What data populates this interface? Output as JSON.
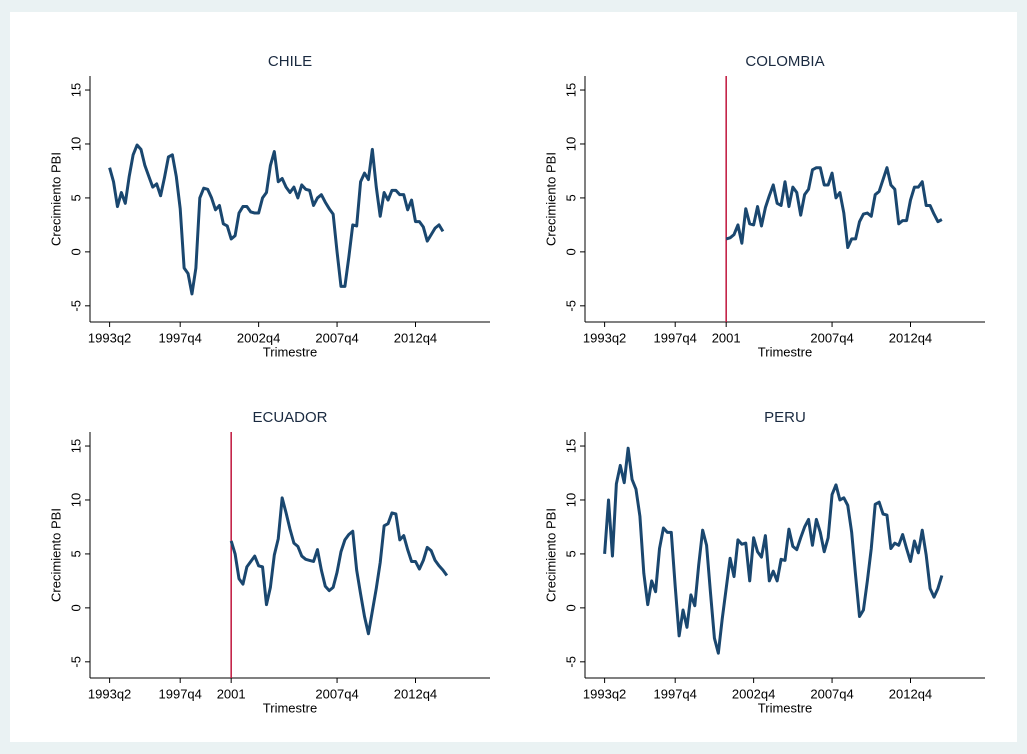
{
  "chart_data": [
    {
      "type": "line",
      "title": "CHILE",
      "x_label": "Trimestre",
      "y_label": "Crecimiento PBI",
      "color": "#1a476f",
      "xlim": [
        1992,
        2017.5
      ],
      "ylim": [
        -6.5,
        16.3
      ],
      "xticks": [
        {
          "value": 1993.25,
          "label": "1993q2"
        },
        {
          "value": 1997.75,
          "label": "1997q4"
        },
        {
          "value": 2002.75,
          "label": "2002q4"
        },
        {
          "value": 2007.75,
          "label": "2007q4"
        },
        {
          "value": 2012.75,
          "label": "2012q4"
        }
      ],
      "yticks": [
        -5,
        0,
        5,
        10,
        15
      ],
      "x": [
        1993.25,
        1993.5,
        1993.75,
        1994,
        1994.25,
        1994.5,
        1994.75,
        1995,
        1995.25,
        1995.5,
        1995.75,
        1996,
        1996.25,
        1996.5,
        1996.75,
        1997,
        1997.25,
        1997.5,
        1997.75,
        1998,
        1998.25,
        1998.5,
        1998.75,
        1999,
        1999.25,
        1999.5,
        1999.75,
        2000,
        2000.25,
        2000.5,
        2000.75,
        2001,
        2001.25,
        2001.5,
        2001.75,
        2002,
        2002.25,
        2002.5,
        2002.75,
        2003,
        2003.25,
        2003.5,
        2003.75,
        2004,
        2004.25,
        2004.5,
        2004.75,
        2005,
        2005.25,
        2005.5,
        2005.75,
        2006,
        2006.25,
        2006.5,
        2006.75,
        2007,
        2007.25,
        2007.5,
        2007.75,
        2008,
        2008.25,
        2008.5,
        2008.75,
        2009,
        2009.25,
        2009.5,
        2009.75,
        2010,
        2010.25,
        2010.5,
        2010.75,
        2011,
        2011.25,
        2011.5,
        2011.75,
        2012,
        2012.25,
        2012.5,
        2012.75,
        2013,
        2013.25,
        2013.5,
        2013.75,
        2014,
        2014.25,
        2014.5
      ],
      "values": [
        7.8,
        6.5,
        4.2,
        5.5,
        4.5,
        7.0,
        9.0,
        9.9,
        9.5,
        8.0,
        7.0,
        6.0,
        6.3,
        5.2,
        6.9,
        8.8,
        9.0,
        7.0,
        4.0,
        -1.5,
        -2.0,
        -3.9,
        -1.5,
        5.0,
        5.9,
        5.8,
        5.0,
        3.9,
        4.3,
        2.6,
        2.4,
        1.2,
        1.5,
        3.6,
        4.2,
        4.2,
        3.7,
        3.6,
        3.6,
        5.0,
        5.5,
        8.0,
        9.3,
        6.5,
        6.8,
        6.0,
        5.5,
        6.0,
        5.0,
        6.2,
        5.8,
        5.7,
        4.3,
        5.0,
        5.3,
        4.6,
        4.0,
        3.5,
        0,
        -3.2,
        -3.2,
        -0.5,
        2.5,
        2.4,
        6.5,
        7.3,
        6.7,
        9.5,
        6.0,
        3.3,
        5.5,
        4.8,
        5.7,
        5.7,
        5.3,
        5.3,
        3.9,
        4.8,
        2.8,
        2.8,
        2.3,
        1.0,
        1.6,
        2.2,
        2.5,
        1.9
      ]
    },
    {
      "type": "line",
      "title": "COLOMBIA",
      "x_label": "Trimestre",
      "y_label": "Crecimiento PBI",
      "color": "#1a476f",
      "xlim": [
        1992,
        2017.5
      ],
      "ylim": [
        -6.5,
        16.3
      ],
      "xticks": [
        {
          "value": 1993.25,
          "label": "1993q2"
        },
        {
          "value": 1997.75,
          "label": "1997q4"
        },
        2001,
        {
          "value": 2007.75,
          "label": "2007q4"
        },
        {
          "value": 2012.75,
          "label": "2012q4"
        }
      ],
      "yticks": [
        -5,
        0,
        5,
        10,
        15
      ],
      "xline": 2001,
      "xline_color": "#c0143c",
      "x": [
        2001,
        2001.25,
        2001.5,
        2001.75,
        2002,
        2002.25,
        2002.5,
        2002.75,
        2003,
        2003.25,
        2003.5,
        2003.75,
        2004,
        2004.25,
        2004.5,
        2004.75,
        2005,
        2005.25,
        2005.5,
        2005.75,
        2006,
        2006.25,
        2006.5,
        2006.75,
        2007,
        2007.25,
        2007.5,
        2007.75,
        2008,
        2008.25,
        2008.5,
        2008.75,
        2009,
        2009.25,
        2009.5,
        2009.75,
        2010,
        2010.25,
        2010.5,
        2010.75,
        2011,
        2011.25,
        2011.5,
        2011.75,
        2012,
        2012.25,
        2012.5,
        2012.75,
        2013,
        2013.25,
        2013.5,
        2013.75,
        2014,
        2014.25,
        2014.5,
        2014.75
      ],
      "values": [
        1.2,
        1.3,
        1.6,
        2.5,
        0.8,
        4.0,
        2.6,
        2.5,
        4.2,
        2.4,
        4.1,
        5.2,
        6.2,
        4.5,
        4.3,
        6.5,
        4.2,
        6.0,
        5.5,
        3.4,
        5.3,
        5.8,
        7.6,
        7.8,
        7.8,
        6.2,
        6.2,
        7.3,
        5.0,
        5.5,
        3.6,
        0.4,
        1.2,
        1.2,
        2.8,
        3.5,
        3.6,
        3.3,
        5.3,
        5.6,
        6.7,
        7.8,
        6.2,
        5.8,
        2.6,
        2.9,
        2.9,
        4.8,
        6.0,
        6.0,
        6.5,
        4.3,
        4.3,
        3.5,
        2.8,
        3.0
      ]
    },
    {
      "type": "line",
      "title": "ECUADOR",
      "x_label": "Trimestre",
      "y_label": "Crecimiento PBI",
      "color": "#1a476f",
      "xlim": [
        1992,
        2017.5
      ],
      "ylim": [
        -6.5,
        16.3
      ],
      "xticks": [
        {
          "value": 1993.25,
          "label": "1993q2"
        },
        {
          "value": 1997.75,
          "label": "1997q4"
        },
        2001,
        {
          "value": 2007.75,
          "label": "2007q4"
        },
        {
          "value": 2012.75,
          "label": "2012q4"
        }
      ],
      "yticks": [
        -5,
        0,
        5,
        10,
        15
      ],
      "xline": 2001,
      "xline_color": "#c0143c",
      "x": [
        2001,
        2001.25,
        2001.5,
        2001.75,
        2002,
        2002.25,
        2002.5,
        2002.75,
        2003,
        2003.25,
        2003.5,
        2003.75,
        2004,
        2004.25,
        2004.5,
        2004.75,
        2005,
        2005.25,
        2005.5,
        2005.75,
        2006,
        2006.25,
        2006.5,
        2006.75,
        2007,
        2007.25,
        2007.5,
        2007.75,
        2008,
        2008.25,
        2008.5,
        2008.75,
        2009,
        2009.25,
        2009.5,
        2009.75,
        2010,
        2010.25,
        2010.5,
        2010.75,
        2011,
        2011.25,
        2011.5,
        2011.75,
        2012,
        2012.25,
        2012.5,
        2012.75,
        2013,
        2013.25,
        2013.5,
        2013.75,
        2014,
        2014.25,
        2014.5,
        2014.75
      ],
      "values": [
        6.2,
        5.0,
        2.7,
        2.2,
        3.8,
        4.3,
        4.8,
        3.9,
        3.8,
        0.3,
        1.9,
        4.9,
        6.4,
        10.2,
        8.8,
        7.3,
        6.0,
        5.7,
        4.8,
        4.5,
        4.4,
        4.3,
        5.4,
        3.5,
        2.0,
        1.6,
        1.9,
        3.3,
        5.2,
        6.3,
        6.8,
        7.1,
        3.5,
        1.3,
        -0.8,
        -2.4,
        -0.3,
        1.8,
        4.2,
        7.6,
        7.8,
        8.8,
        8.7,
        6.3,
        6.7,
        5.4,
        4.3,
        4.3,
        3.6,
        4.4,
        5.6,
        5.3,
        4.4,
        3.9,
        3.5,
        3.0
      ]
    },
    {
      "type": "line",
      "title": "PERU",
      "x_label": "Trimestre",
      "y_label": "Crecimiento PBI",
      "color": "#1a476f",
      "xlim": [
        1992,
        2017.5
      ],
      "ylim": [
        -6.5,
        16.3
      ],
      "xticks": [
        {
          "value": 1993.25,
          "label": "1993q2"
        },
        {
          "value": 1997.75,
          "label": "1997q4"
        },
        {
          "value": 2002.75,
          "label": "2002q4"
        },
        {
          "value": 2007.75,
          "label": "2007q4"
        },
        {
          "value": 2012.75,
          "label": "2012q4"
        }
      ],
      "yticks": [
        -5,
        0,
        5,
        10,
        15
      ],
      "x": [
        1993.25,
        1993.5,
        1993.75,
        1994,
        1994.25,
        1994.5,
        1994.75,
        1995,
        1995.25,
        1995.5,
        1995.75,
        1996,
        1996.25,
        1996.5,
        1996.75,
        1997,
        1997.25,
        1997.5,
        1997.75,
        1998,
        1998.25,
        1998.5,
        1998.75,
        1999,
        1999.25,
        1999.5,
        1999.75,
        2000,
        2000.25,
        2000.5,
        2000.75,
        2001,
        2001.25,
        2001.5,
        2001.75,
        2002,
        2002.25,
        2002.5,
        2002.75,
        2003,
        2003.25,
        2003.5,
        2003.75,
        2004,
        2004.25,
        2004.5,
        2004.75,
        2005,
        2005.25,
        2005.5,
        2005.75,
        2006,
        2006.25,
        2006.5,
        2006.75,
        2007,
        2007.25,
        2007.5,
        2007.75,
        2008,
        2008.25,
        2008.5,
        2008.75,
        2009,
        2009.25,
        2009.5,
        2009.75,
        2010,
        2010.25,
        2010.5,
        2010.75,
        2011,
        2011.25,
        2011.5,
        2011.75,
        2012,
        2012.25,
        2012.5,
        2012.75,
        2013,
        2013.25,
        2013.5,
        2013.75,
        2014,
        2014.25,
        2014.5,
        2014.75
      ],
      "values": [
        5.0,
        10.0,
        4.8,
        11.5,
        13.2,
        11.6,
        14.8,
        11.9,
        11.0,
        8.5,
        3.2,
        0.3,
        2.5,
        1.5,
        5.5,
        7.4,
        7.0,
        7.0,
        2.0,
        -2.6,
        -0.2,
        -1.8,
        1.2,
        0.2,
        4.0,
        7.2,
        5.8,
        1.4,
        -2.8,
        -4.2,
        -1.0,
        1.8,
        4.6,
        2.9,
        6.3,
        5.9,
        6.0,
        2.5,
        6.5,
        5.2,
        4.7,
        6.7,
        2.5,
        3.4,
        2.5,
        4.5,
        4.4,
        7.3,
        5.7,
        5.4,
        6.5,
        7.5,
        8.2,
        5.8,
        8.2,
        7.0,
        5.2,
        6.5,
        10.5,
        11.4,
        10.0,
        10.2,
        9.5,
        7.0,
        3.0,
        -0.8,
        -0.2,
        2.5,
        5.5,
        9.6,
        9.8,
        8.7,
        8.6,
        5.5,
        6.0,
        5.8,
        6.8,
        5.5,
        4.3,
        6.2,
        5.1,
        7.2,
        4.9,
        1.8,
        1.0,
        1.8,
        3.0
      ]
    }
  ]
}
